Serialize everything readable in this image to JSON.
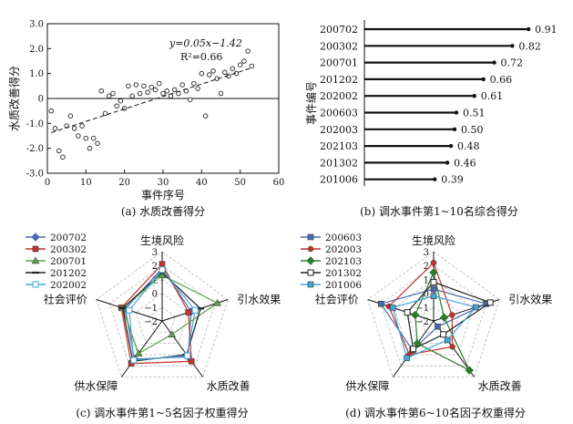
{
  "chart_data": [
    {
      "type": "scatter",
      "caption": "(a) 水质改善得分",
      "xlabel": "事件序号",
      "ylabel": "水质改善得分",
      "xlim": [
        0,
        60
      ],
      "ylim": [
        -3.0,
        3.0
      ],
      "xticks": [
        "0",
        "10",
        "20",
        "30",
        "40",
        "50",
        "60"
      ],
      "yticks": [
        "-3.0",
        "-2.0",
        "-1.0",
        "0",
        "1.0",
        "2.0",
        "3.0"
      ],
      "equation": "y=0.05x−1.42",
      "r2": "R²=0.66",
      "trend": {
        "slope": 0.05,
        "intercept": -1.42,
        "x_from": 1,
        "x_to": 53
      },
      "points": [
        [
          1,
          -0.5
        ],
        [
          2,
          -1.2
        ],
        [
          3,
          -2.1
        ],
        [
          4,
          -2.35
        ],
        [
          5,
          -1.1
        ],
        [
          6,
          -0.7
        ],
        [
          7,
          -1.2
        ],
        [
          8,
          -1.5
        ],
        [
          9,
          -1.1
        ],
        [
          10,
          -1.6
        ],
        [
          11,
          -2.0
        ],
        [
          12,
          -1.6
        ],
        [
          13,
          -1.8
        ],
        [
          14,
          0.3
        ],
        [
          15,
          -0.6
        ],
        [
          16,
          0.1
        ],
        [
          17,
          0.2
        ],
        [
          18,
          -0.3
        ],
        [
          19,
          -0.1
        ],
        [
          20,
          -0.4
        ],
        [
          21,
          0.5
        ],
        [
          22,
          0.1
        ],
        [
          23,
          0.55
        ],
        [
          24,
          0.2
        ],
        [
          25,
          0.5
        ],
        [
          26,
          0.25
        ],
        [
          27,
          0.45
        ],
        [
          28,
          0.35
        ],
        [
          29,
          0.6
        ],
        [
          30,
          0.2
        ],
        [
          31,
          0.3
        ],
        [
          32,
          0.1
        ],
        [
          33,
          0.35
        ],
        [
          34,
          0.2
        ],
        [
          35,
          0.55
        ],
        [
          36,
          0.3
        ],
        [
          37,
          -0.05
        ],
        [
          38,
          0.6
        ],
        [
          39,
          0.4
        ],
        [
          40,
          1.0
        ],
        [
          41,
          -0.7
        ],
        [
          42,
          0.95
        ],
        [
          43,
          1.1
        ],
        [
          44,
          0.8
        ],
        [
          45,
          0.2
        ],
        [
          46,
          1.05
        ],
        [
          47,
          0.9
        ],
        [
          48,
          1.2
        ],
        [
          49,
          1.0
        ],
        [
          50,
          1.35
        ],
        [
          51,
          1.5
        ],
        [
          52,
          1.9
        ],
        [
          53,
          1.3
        ]
      ]
    },
    {
      "type": "bar",
      "orientation": "horizontal-lollipop",
      "caption": "(b) 调水事件第1~10名综合得分",
      "ylabel": "事件编号",
      "categories": [
        "200702",
        "200302",
        "200701",
        "201202",
        "202002",
        "200603",
        "202003",
        "202103",
        "201302",
        "201006"
      ],
      "values": [
        0.91,
        0.82,
        0.72,
        0.66,
        0.61,
        0.51,
        0.5,
        0.48,
        0.46,
        0.39
      ],
      "value_labels": [
        "0.91",
        "0.82",
        "0.72",
        "0.66",
        "0.61",
        "0.51",
        "0.50",
        "0.48",
        "0.46",
        "0.39"
      ],
      "xlim": [
        0,
        1.0
      ]
    },
    {
      "type": "radar",
      "caption": "(c) 调水事件第1~5名因子权重得分",
      "axes": [
        "生境风险",
        "引水效果",
        "水质改善",
        "供水保障",
        "社会评价"
      ],
      "ticks": [
        "3",
        "2",
        "1",
        "0",
        "−1",
        "−2"
      ],
      "range": [
        -2,
        3
      ],
      "legend_position": "top-left",
      "series": [
        {
          "name": "200702",
          "color": "#4a6bb0",
          "marker": "diamond",
          "values": [
            1.8,
            0.2,
            1.2,
            1.4,
            0.8
          ]
        },
        {
          "name": "200302",
          "color": "#c8312b",
          "marker": "square",
          "values": [
            2.1,
            0.0,
            1.6,
            1.8,
            1.1
          ]
        },
        {
          "name": "200701",
          "color": "#5aa04a",
          "marker": "triangle",
          "values": [
            1.3,
            2.2,
            -0.8,
            0.9,
            1.0
          ]
        },
        {
          "name": "201202",
          "color": "#222222",
          "marker": "dash",
          "values": [
            1.5,
            0.9,
            1.0,
            1.6,
            1.0
          ]
        },
        {
          "name": "202002",
          "color": "#41a7d8",
          "marker": "square-open",
          "values": [
            1.7,
            0.5,
            1.1,
            1.5,
            0.5
          ]
        }
      ]
    },
    {
      "type": "radar",
      "caption": "(d) 调水事件第6~10名因子权重得分",
      "axes": [
        "生境风险",
        "引水效果",
        "水质改善",
        "供水保障",
        "社会评价"
      ],
      "ticks": [
        "3",
        "2",
        "1",
        "0",
        "−1",
        "−2"
      ],
      "range": [
        -2,
        3
      ],
      "legend_position": "top-left",
      "series": [
        {
          "name": "200603",
          "color": "#4a6bb0",
          "marker": "square",
          "values": [
            0.3,
            2.0,
            -1.5,
            0.6,
            2.0
          ]
        },
        {
          "name": "202003",
          "color": "#c8312b",
          "marker": "circle",
          "values": [
            2.2,
            -0.6,
            0.3,
            1.0,
            1.4
          ]
        },
        {
          "name": "202103",
          "color": "#2f7a2f",
          "marker": "diamond",
          "values": [
            1.5,
            -1.2,
            2.4,
            0.0,
            -0.6
          ]
        },
        {
          "name": "201302",
          "color": "#222222",
          "marker": "square-open",
          "values": [
            0.8,
            2.3,
            -0.8,
            0.5,
            0.0
          ]
        },
        {
          "name": "201006",
          "color": "#41a7d8",
          "marker": "square",
          "values": [
            -0.2,
            1.2,
            -0.3,
            1.3,
            1.1
          ]
        }
      ]
    }
  ]
}
